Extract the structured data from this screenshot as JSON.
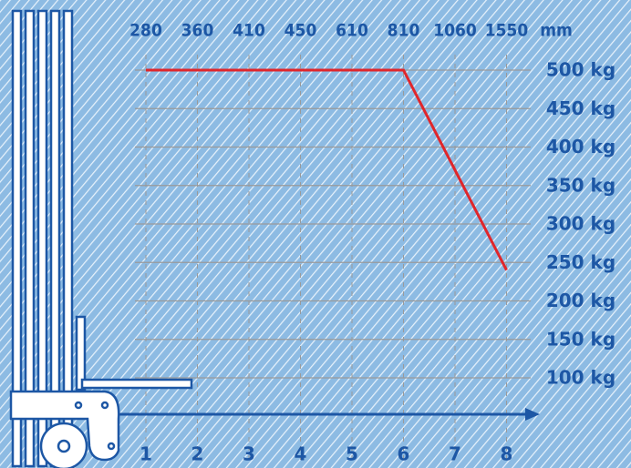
{
  "chart_data": {
    "type": "line",
    "categories": [
      "1",
      "2",
      "3",
      "4",
      "5",
      "6",
      "7",
      "8"
    ],
    "top_labels": [
      "280",
      "360",
      "410",
      "450",
      "610",
      "810",
      "1060",
      "1550"
    ],
    "top_unit": "mm",
    "series": [
      {
        "color": "#e0262b",
        "values": [
          500,
          500,
          500,
          500,
          500,
          500,
          370,
          240
        ]
      }
    ],
    "ylim": [
      100,
      500
    ],
    "yticks": [
      {
        "value": 100,
        "label": "100 kg"
      },
      {
        "value": 150,
        "label": "150 kg"
      },
      {
        "value": 200,
        "label": "200 kg"
      },
      {
        "value": 250,
        "label": "250 kg"
      },
      {
        "value": 300,
        "label": "300 kg"
      },
      {
        "value": 350,
        "label": "350 kg"
      },
      {
        "value": 400,
        "label": "400 kg"
      },
      {
        "value": 450,
        "label": "450 kg"
      },
      {
        "value": 500,
        "label": "500 kg"
      }
    ],
    "grid": true
  }
}
